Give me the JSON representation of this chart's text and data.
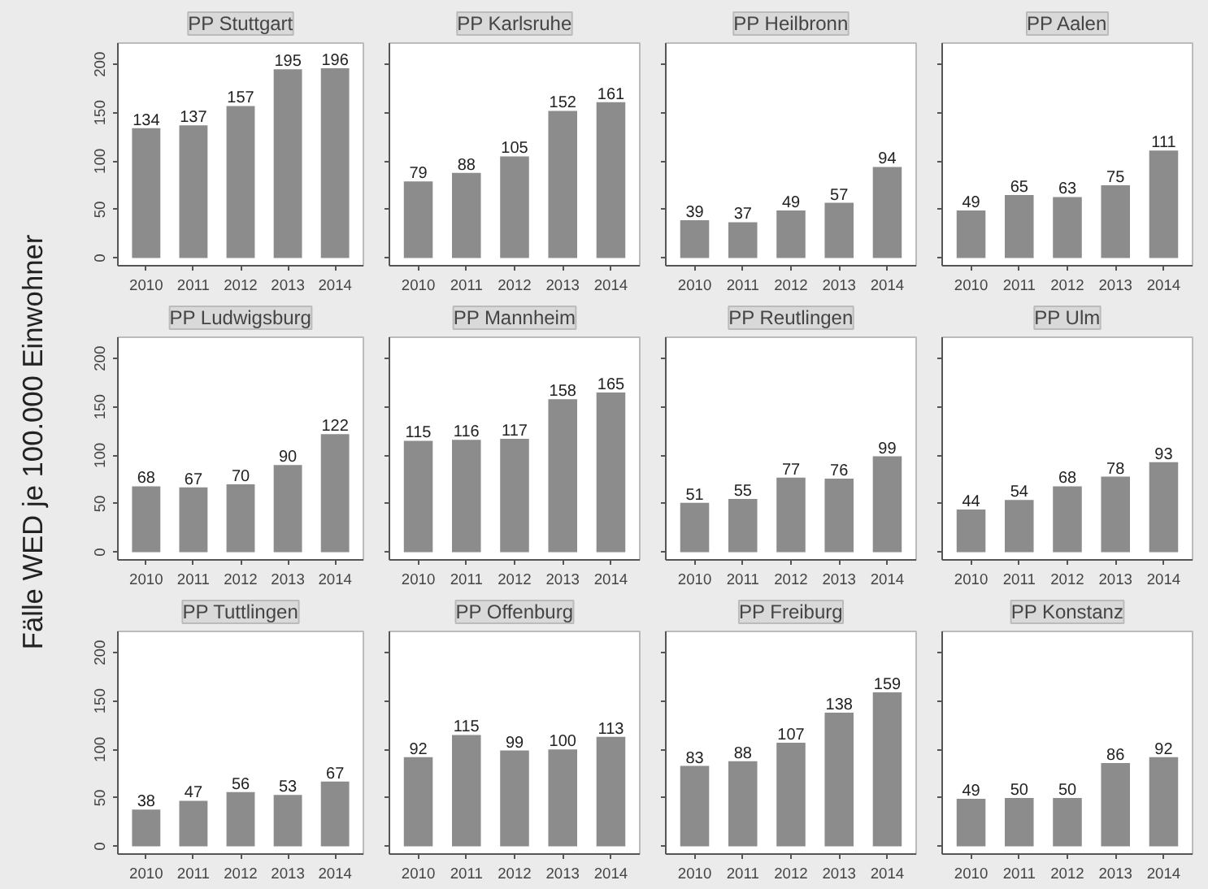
{
  "chart_data": [
    {
      "type": "bar",
      "title": "PP Stuttgart",
      "categories": [
        "2010",
        "2011",
        "2012",
        "2013",
        "2014"
      ],
      "values": [
        134,
        137,
        157,
        195,
        196
      ],
      "color": "#8c8c8c",
      "ylim": [
        -8,
        222
      ],
      "yticks": [
        0,
        50,
        100,
        150,
        200
      ],
      "data_labels": true
    },
    {
      "type": "bar",
      "title": "PP Karlsruhe",
      "categories": [
        "2010",
        "2011",
        "2012",
        "2013",
        "2014"
      ],
      "values": [
        79,
        88,
        105,
        152,
        161
      ],
      "color": "#8c8c8c",
      "ylim": [
        -8,
        222
      ],
      "yticks": [
        0,
        50,
        100,
        150,
        200
      ],
      "data_labels": true,
      "tick_labels": "x"
    },
    {
      "type": "bar",
      "title": "PP Heilbronn",
      "categories": [
        "2010",
        "2011",
        "2012",
        "2013",
        "2014"
      ],
      "values": [
        39,
        37,
        49,
        57,
        94
      ],
      "color": "#8c8c8c",
      "ylim": [
        -8,
        222
      ],
      "yticks": [
        0,
        50,
        100,
        150,
        200
      ],
      "data_labels": true,
      "tick_labels": "x"
    },
    {
      "type": "bar",
      "title": "PP Aalen",
      "categories": [
        "2010",
        "2011",
        "2012",
        "2013",
        "2014"
      ],
      "values": [
        49,
        65,
        63,
        75,
        111
      ],
      "color": "#8c8c8c",
      "ylim": [
        -8,
        222
      ],
      "yticks": [
        0,
        50,
        100,
        150,
        200
      ],
      "data_labels": true,
      "tick_labels": "x"
    },
    {
      "type": "bar",
      "title": "PP Ludwigsburg",
      "ylabel": "Fälle WED je 100.000 Einwohner",
      "categories": [
        "2010",
        "2011",
        "2012",
        "2013",
        "2014"
      ],
      "values": [
        68,
        67,
        70,
        90,
        122
      ],
      "color": "#8c8c8c",
      "ylim": [
        -8,
        222
      ],
      "yticks": [
        0,
        50,
        100,
        150,
        200
      ],
      "data_labels": true
    },
    {
      "type": "bar",
      "title": "PP Mannheim",
      "categories": [
        "2010",
        "2011",
        "2012",
        "2013",
        "2014"
      ],
      "values": [
        115,
        116,
        117,
        158,
        165
      ],
      "color": "#8c8c8c",
      "ylim": [
        -8,
        222
      ],
      "yticks": [
        0,
        50,
        100,
        150,
        200
      ],
      "data_labels": true,
      "tick_labels": "x"
    },
    {
      "type": "bar",
      "title": "PP Reutlingen",
      "categories": [
        "2010",
        "2011",
        "2012",
        "2013",
        "2014"
      ],
      "values": [
        51,
        55,
        77,
        76,
        99
      ],
      "color": "#8c8c8c",
      "ylim": [
        -8,
        222
      ],
      "yticks": [
        0,
        50,
        100,
        150,
        200
      ],
      "data_labels": true,
      "tick_labels": "x"
    },
    {
      "type": "bar",
      "title": "PP Ulm",
      "categories": [
        "2010",
        "2011",
        "2012",
        "2013",
        "2014"
      ],
      "values": [
        44,
        54,
        68,
        78,
        93
      ],
      "color": "#8c8c8c",
      "ylim": [
        -8,
        222
      ],
      "yticks": [
        0,
        50,
        100,
        150,
        200
      ],
      "data_labels": true,
      "tick_labels": "x"
    },
    {
      "type": "bar",
      "title": "PP Tuttlingen",
      "categories": [
        "2010",
        "2011",
        "2012",
        "2013",
        "2014"
      ],
      "values": [
        38,
        47,
        56,
        53,
        67
      ],
      "color": "#8c8c8c",
      "ylim": [
        -8,
        222
      ],
      "yticks": [
        0,
        50,
        100,
        150,
        200
      ],
      "data_labels": true
    },
    {
      "type": "bar",
      "title": "PP Offenburg",
      "categories": [
        "2010",
        "2011",
        "2012",
        "2013",
        "2014"
      ],
      "values": [
        92,
        115,
        99,
        100,
        113
      ],
      "color": "#8c8c8c",
      "ylim": [
        -8,
        222
      ],
      "yticks": [
        0,
        50,
        100,
        150,
        200
      ],
      "data_labels": true,
      "tick_labels": "x"
    },
    {
      "type": "bar",
      "title": "PP Freiburg",
      "categories": [
        "2010",
        "2011",
        "2012",
        "2013",
        "2014"
      ],
      "values": [
        83,
        88,
        107,
        138,
        159
      ],
      "color": "#8c8c8c",
      "ylim": [
        -8,
        222
      ],
      "yticks": [
        0,
        50,
        100,
        150,
        200
      ],
      "data_labels": true,
      "tick_labels": "x"
    },
    {
      "type": "bar",
      "title": "PP Konstanz",
      "categories": [
        "2010",
        "2011",
        "2012",
        "2013",
        "2014"
      ],
      "values": [
        49,
        50,
        50,
        86,
        92
      ],
      "color": "#8c8c8c",
      "ylim": [
        -8,
        222
      ],
      "yticks": [
        0,
        50,
        100,
        150,
        200
      ],
      "data_labels": true,
      "tick_labels": "x"
    }
  ]
}
